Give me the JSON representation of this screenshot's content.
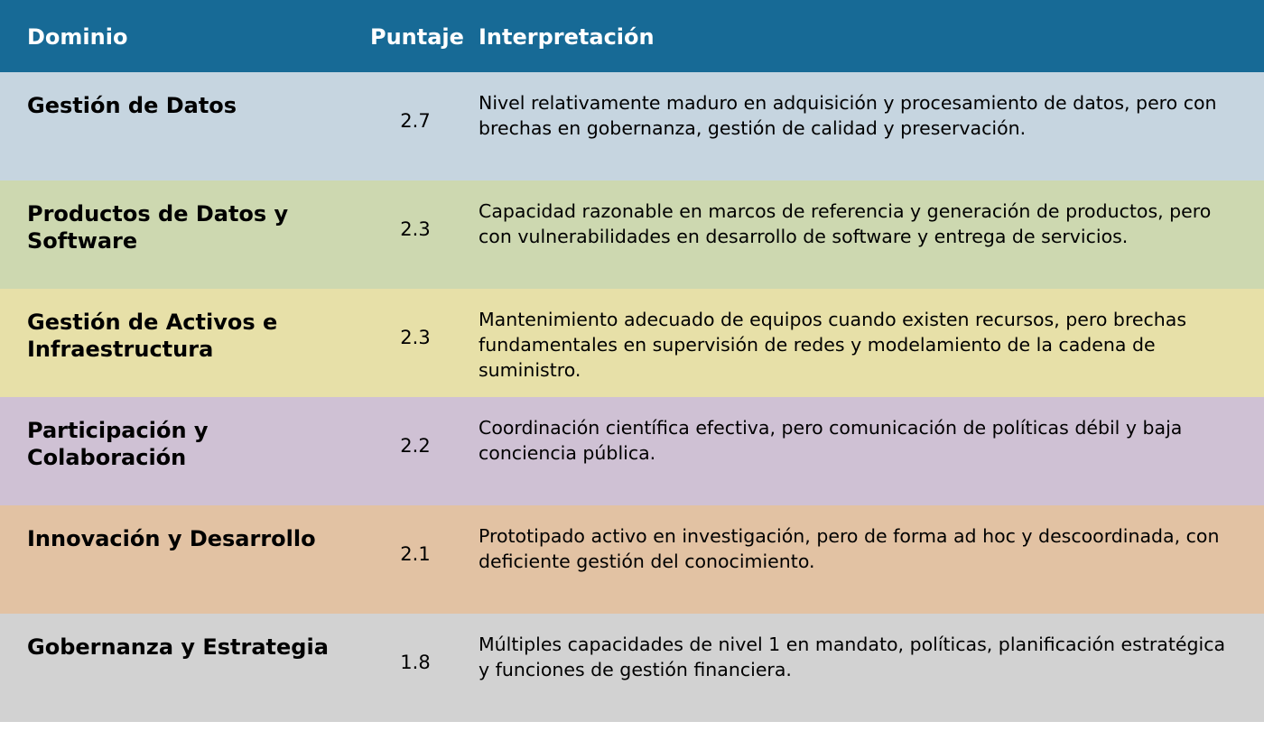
{
  "table": {
    "header": [
      "Dominio",
      "Puntaje",
      "Interpretación"
    ],
    "rows": [
      [
        "Gestión de Datos",
        2.7,
        "Nivel relativamente maduro en adquisición y procesamiento de datos, pero con brechas en gobernanza, gestión de calidad y preservación."
      ],
      [
        "Productos de Datos y Software",
        2.3,
        "Capacidad razonable en marcos de referencia y generación de productos, pero con vulnerabilidades en desarrollo de software y entrega de servicios."
      ],
      [
        "Gestión de Activos e Infraestructura",
        2.3,
        "Mantenimiento adecuado de equipos cuando existen recursos, pero brechas fundamentales en supervisión de redes y modelamiento de la cadena de suministro."
      ],
      [
        "Participación y Colaboración",
        2.2,
        "Coordinación científica efectiva, pero comunicación de políticas débil y baja conciencia pública."
      ],
      [
        "Innovación y Desarrollo",
        2.1,
        "Prototipado activo en investigación, pero de forma ad hoc y descoordinada, con deficiente gestión del conocimiento."
      ],
      [
        "Gobernanza y Estrategia",
        1.8,
        "Múltiples capacidades de nivel 1 en mandato, políticas, planificación estratégica y funciones de gestión financiera."
      ]
    ]
  }
}
